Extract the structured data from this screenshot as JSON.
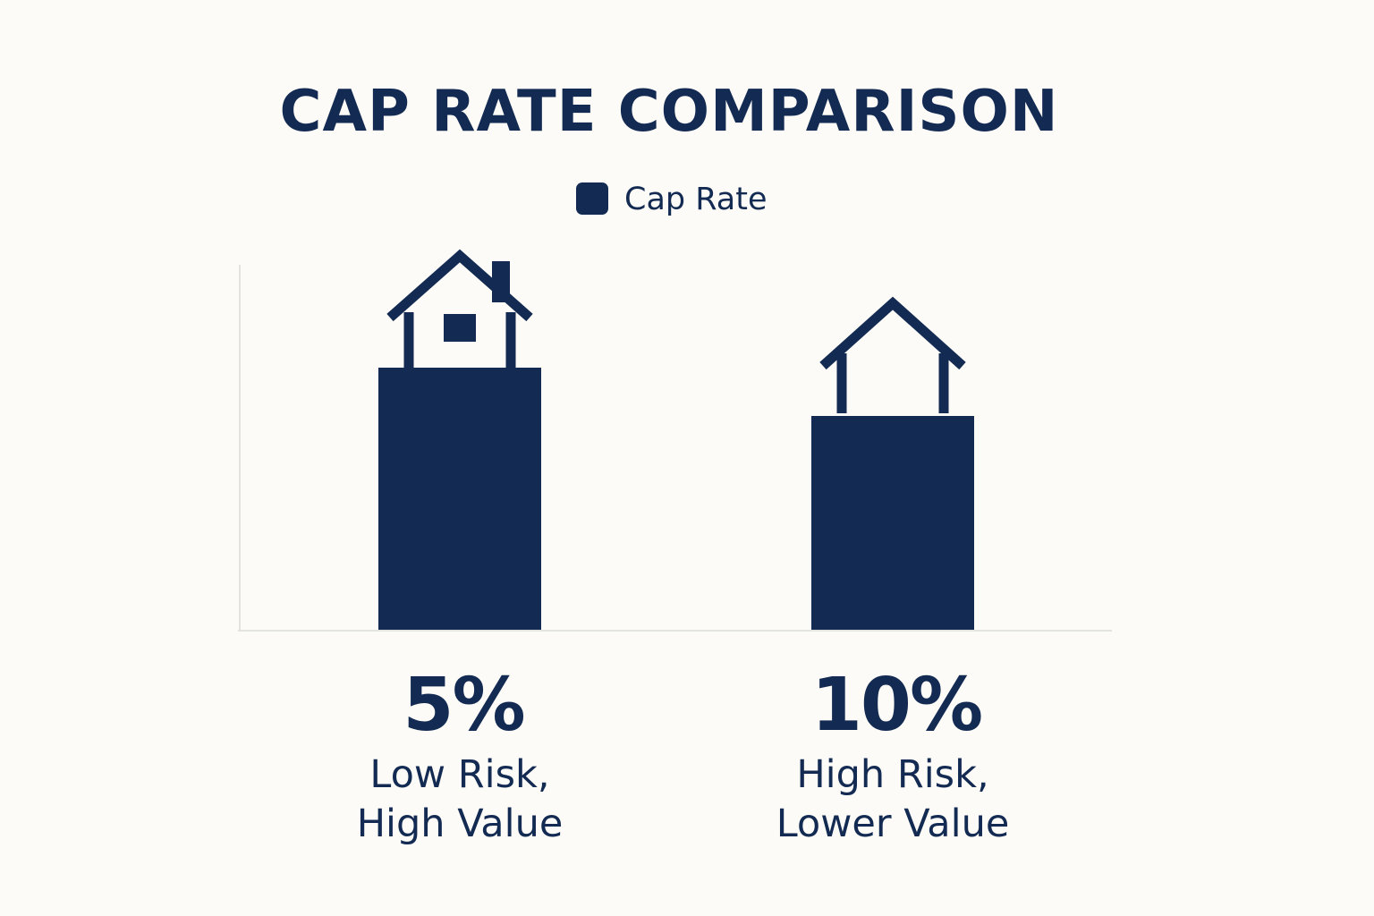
{
  "chart_data": {
    "type": "bar",
    "title": "CAP RATE COMPARISON",
    "xlabel": "",
    "ylabel": "",
    "legend": {
      "position": "top-center"
    },
    "grid": false,
    "categories": [
      "5%",
      "10%"
    ],
    "value_labels": [
      "5%",
      "10%"
    ],
    "descriptions": [
      [
        "Low Risk,",
        "High Value"
      ],
      [
        "High Risk,",
        "Lower Value"
      ]
    ],
    "series": [
      {
        "name": "Cap Rate",
        "values": [
          5,
          10
        ]
      }
    ],
    "bar_heights_shown": [
      293,
      239
    ],
    "icons": [
      "house-with-chimney-icon",
      "house-outline-icon"
    ]
  },
  "colors": {
    "bar": "#132a52",
    "text": "#132a52",
    "axis": "#e3e3e0",
    "background": "#fcfbf7"
  }
}
